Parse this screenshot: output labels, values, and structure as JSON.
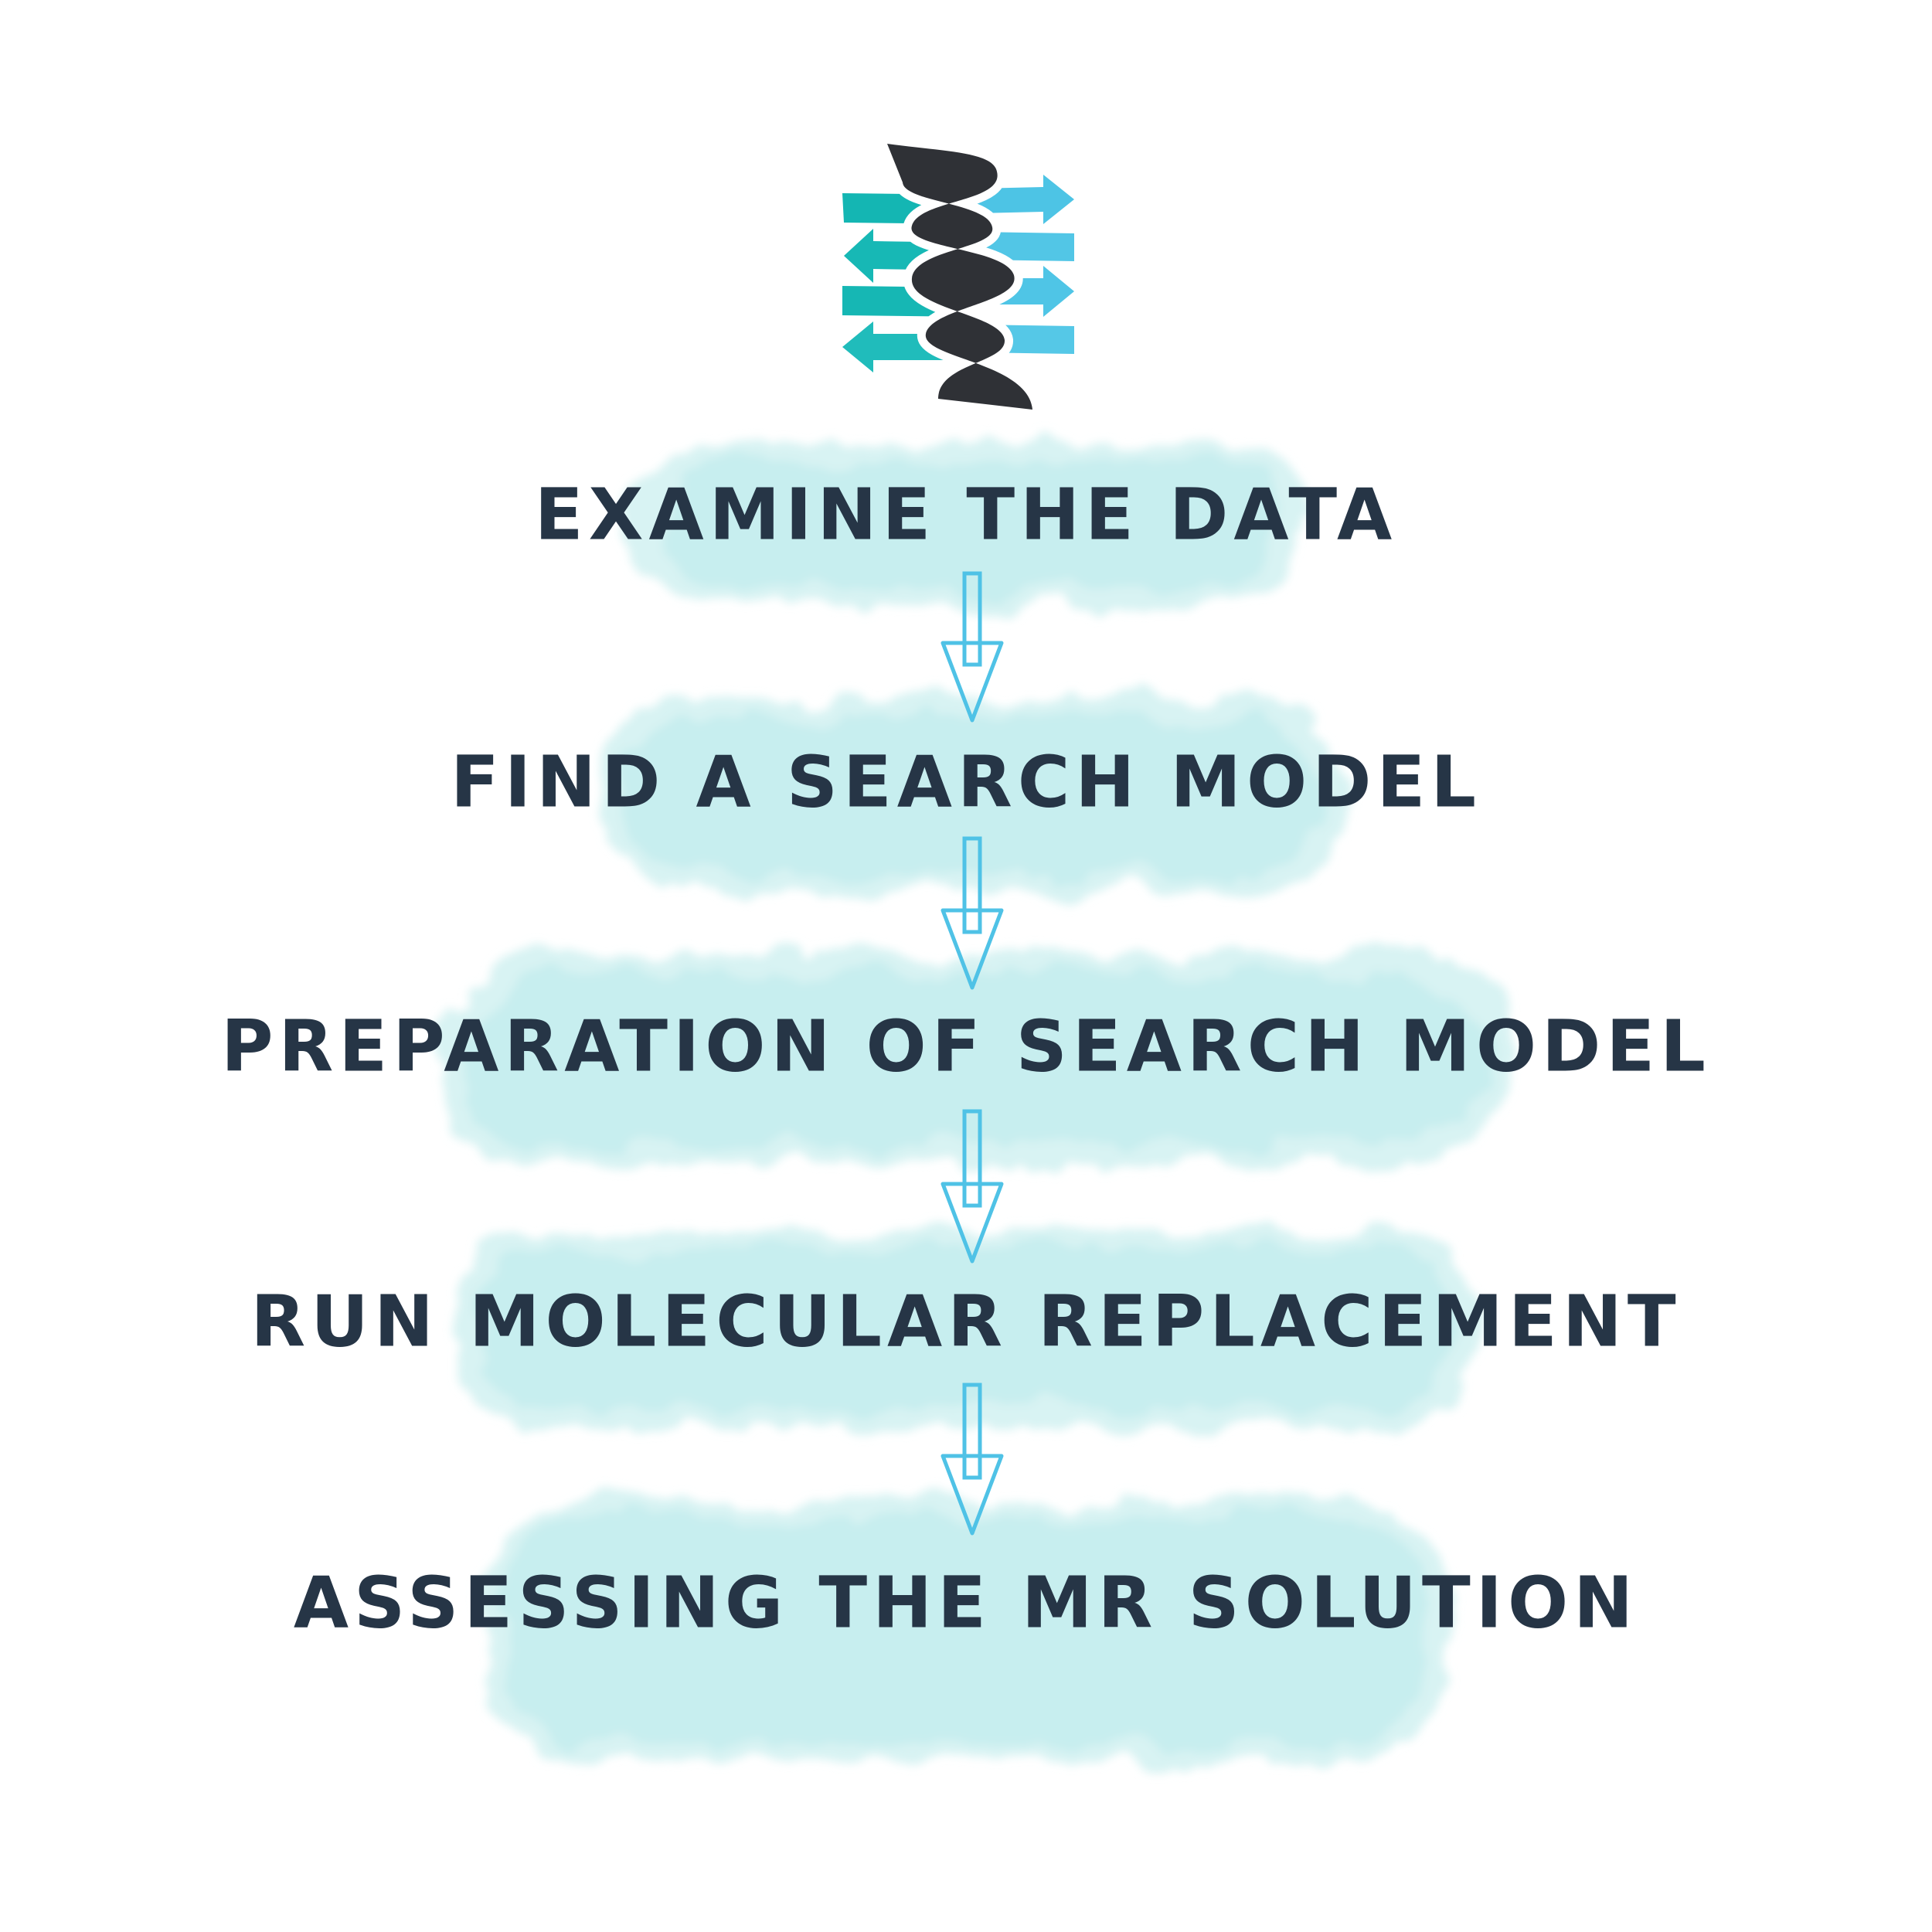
{
  "colors": {
    "background": "#ffffff",
    "cloud": "#c4eced",
    "cloud_edge": "#d8f3f3",
    "text": "#263546",
    "arrow": "#4fc2e6",
    "logo_teal": "#14b6b3",
    "logo_blue": "#4dc4e5",
    "logo_ribbon": "#2f3136"
  },
  "logo": {
    "icon": "protein-helix-sheet-logo-icon"
  },
  "arrow_icon": "down-arrow-outline-icon",
  "steps": [
    {
      "label": "EXAMINE THE DATA"
    },
    {
      "label": "FIND A SEARCH MODEL"
    },
    {
      "label": "PREPARATION OF SEARCH MODEL"
    },
    {
      "label": "RUN MOLECULAR REPLACEMENT"
    },
    {
      "label": "ASSESSING THE MR SOLUTION"
    }
  ]
}
